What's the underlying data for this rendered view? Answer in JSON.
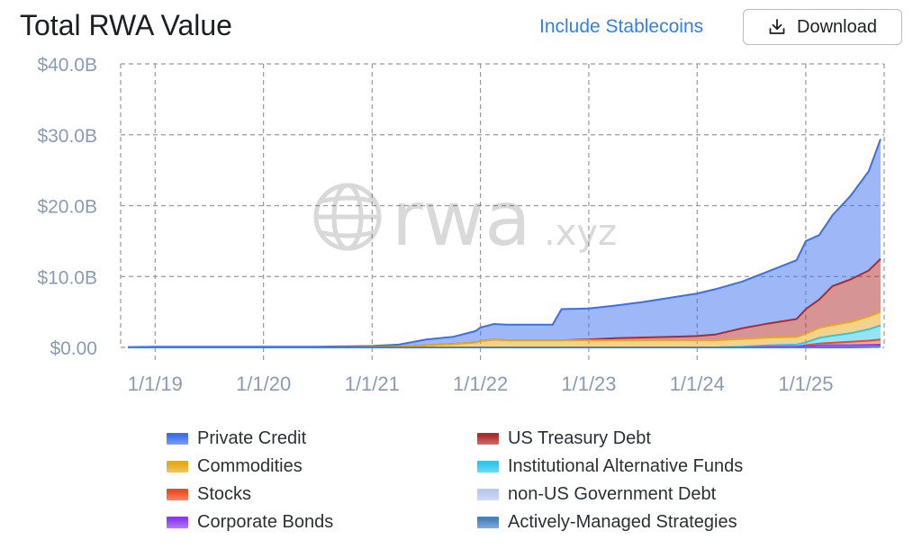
{
  "header": {
    "title": "Total RWA Value",
    "toggle_label": "Include Stablecoins",
    "download_label": "Download"
  },
  "watermark": {
    "text_main": "rwa",
    "text_suffix": ".xyz"
  },
  "icons": {
    "download": "download-icon",
    "watermark_globe": "globe-icon"
  },
  "colors": {
    "private_credit": "#3b6ff0",
    "us_treasury": "#b02a2a",
    "commodities": "#e6a81c",
    "institutional_funds": "#2ec7e6",
    "stocks": "#f04a1e",
    "non_us_gov": "#b8c8f0",
    "corporate_bonds": "#8a3cf0",
    "actively_managed": "#4a7fc0",
    "axis_text": "#8a9bb5",
    "grid": "#9a9a9a"
  },
  "chart_data": {
    "type": "area",
    "title": "Total RWA Value",
    "stacked": true,
    "x": [
      "2018-10-01",
      "2019-01-01",
      "2019-07-01",
      "2020-01-01",
      "2020-07-01",
      "2021-01-01",
      "2021-04-01",
      "2021-07-01",
      "2021-10-01",
      "2021-12-15",
      "2022-01-01",
      "2022-02-15",
      "2022-04-01",
      "2022-06-01",
      "2022-08-01",
      "2022-09-01",
      "2022-10-01",
      "2023-01-01",
      "2023-04-01",
      "2023-07-01",
      "2023-10-01",
      "2024-01-01",
      "2024-03-01",
      "2024-06-01",
      "2024-09-01",
      "2024-12-01",
      "2025-01-01",
      "2025-02-15",
      "2025-04-01",
      "2025-06-01",
      "2025-08-01",
      "2025-09-10"
    ],
    "series": [
      {
        "name": "Actively-Managed Strategies",
        "values": [
          0,
          0,
          0,
          0,
          0,
          0,
          0,
          0,
          0,
          0,
          0,
          0,
          0,
          0,
          0,
          0,
          0,
          0,
          0,
          0,
          0,
          0,
          0,
          0,
          0,
          0,
          0,
          0,
          0,
          0,
          0.05,
          0.1
        ]
      },
      {
        "name": "Corporate Bonds",
        "values": [
          0,
          0,
          0,
          0,
          0,
          0,
          0,
          0,
          0,
          0,
          0,
          0,
          0,
          0,
          0,
          0,
          0,
          0,
          0,
          0,
          0,
          0,
          0,
          0,
          0.1,
          0.1,
          0.2,
          0.3,
          0.3,
          0.3,
          0.3,
          0.3
        ]
      },
      {
        "name": "non-US Government Debt",
        "values": [
          0,
          0,
          0,
          0,
          0,
          0,
          0,
          0,
          0,
          0,
          0,
          0,
          0,
          0,
          0,
          0,
          0,
          0,
          0,
          0,
          0,
          0,
          0,
          0,
          0,
          0,
          0,
          0.05,
          0.05,
          0.1,
          0.1,
          0.1
        ]
      },
      {
        "name": "Stocks",
        "values": [
          0,
          0,
          0,
          0,
          0,
          0,
          0,
          0,
          0,
          0,
          0,
          0,
          0,
          0,
          0,
          0,
          0,
          0,
          0,
          0,
          0,
          0,
          0,
          0,
          0,
          0,
          0.1,
          0.2,
          0.3,
          0.4,
          0.5,
          0.6
        ]
      },
      {
        "name": "Institutional Alternative Funds",
        "values": [
          0,
          0,
          0,
          0,
          0,
          0,
          0,
          0,
          0,
          0,
          0,
          0,
          0,
          0,
          0,
          0,
          0,
          0,
          0,
          0,
          0,
          0,
          0,
          0.1,
          0.2,
          0.3,
          0.4,
          0.8,
          1.0,
          1.2,
          1.6,
          2.0
        ]
      },
      {
        "name": "Commodities",
        "values": [
          0,
          0,
          0,
          0,
          0,
          0.05,
          0.1,
          0.3,
          0.5,
          0.7,
          0.9,
          1.1,
          1.0,
          1.0,
          1.0,
          1.0,
          1.0,
          1.0,
          1.0,
          1.0,
          1.0,
          1.0,
          1.0,
          1.1,
          1.1,
          1.1,
          1.2,
          1.4,
          1.5,
          1.6,
          1.8,
          1.9
        ]
      },
      {
        "name": "US Treasury Debt",
        "values": [
          0,
          0,
          0,
          0,
          0,
          0,
          0,
          0,
          0,
          0,
          0,
          0,
          0,
          0,
          0,
          0,
          0,
          0.1,
          0.3,
          0.4,
          0.5,
          0.6,
          0.8,
          1.5,
          2.0,
          2.5,
          3.5,
          4.0,
          5.5,
          6.0,
          6.5,
          7.5
        ]
      },
      {
        "name": "Private Credit",
        "values": [
          0.05,
          0.1,
          0.1,
          0.1,
          0.1,
          0.15,
          0.3,
          0.8,
          1.0,
          1.6,
          1.9,
          2.2,
          2.2,
          2.2,
          2.2,
          2.2,
          4.4,
          4.4,
          4.6,
          5.0,
          5.5,
          6.0,
          6.4,
          6.6,
          7.4,
          8.3,
          9.6,
          9.1,
          10.0,
          11.8,
          14.0,
          16.9
        ]
      }
    ],
    "ylim": [
      0,
      40
    ],
    "y_ticks": [
      0,
      10,
      20,
      30,
      40
    ],
    "y_tick_labels": [
      "$0.00",
      "$10.0B",
      "$20.0B",
      "$30.0B",
      "$40.0B"
    ],
    "x_ticks": [
      "2019-01-01",
      "2020-01-01",
      "2021-01-01",
      "2022-01-01",
      "2023-01-01",
      "2024-01-01",
      "2025-01-01"
    ],
    "x_tick_labels": [
      "1/1/19",
      "1/1/20",
      "1/1/21",
      "1/1/22",
      "1/1/23",
      "1/1/24",
      "1/1/25"
    ],
    "xlabel": "",
    "ylabel": "",
    "grid": true,
    "legend": [
      {
        "name": "Private Credit",
        "color": "#3b6ff0"
      },
      {
        "name": "US Treasury Debt",
        "color": "#b02a2a"
      },
      {
        "name": "Commodities",
        "color": "#e6a81c"
      },
      {
        "name": "Institutional Alternative Funds",
        "color": "#2ec7e6"
      },
      {
        "name": "Stocks",
        "color": "#f04a1e"
      },
      {
        "name": "non-US Government Debt",
        "color": "#b8c8f0"
      },
      {
        "name": "Corporate Bonds",
        "color": "#8a3cf0"
      },
      {
        "name": "Actively-Managed Strategies",
        "color": "#4a7fc0"
      }
    ],
    "legend_position": "bottom"
  }
}
